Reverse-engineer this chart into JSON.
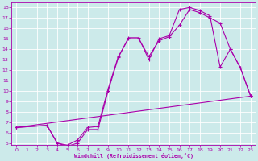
{
  "xlabel": "Windchill (Refroidissement éolien,°C)",
  "bg_color": "#cceaea",
  "line_color": "#aa00aa",
  "grid_color": "#ffffff",
  "xlim": [
    -0.5,
    23.5
  ],
  "ylim": [
    4.8,
    18.5
  ],
  "xticks": [
    0,
    1,
    2,
    3,
    4,
    5,
    6,
    7,
    8,
    9,
    10,
    11,
    12,
    13,
    14,
    15,
    16,
    17,
    18,
    19,
    20,
    21,
    22,
    23
  ],
  "yticks": [
    5,
    6,
    7,
    8,
    9,
    10,
    11,
    12,
    13,
    14,
    15,
    16,
    17,
    18
  ],
  "curve1_x": [
    0,
    23
  ],
  "curve1_y": [
    6.5,
    9.5
  ],
  "curve2_x": [
    0,
    3,
    4,
    5,
    6,
    7,
    8,
    9,
    10,
    11,
    12,
    13,
    14,
    15,
    16,
    17,
    18,
    19,
    20,
    21,
    22,
    23
  ],
  "curve2_y": [
    6.5,
    6.7,
    5.0,
    4.8,
    5.3,
    6.5,
    6.6,
    10.2,
    13.3,
    15.0,
    15.0,
    13.3,
    14.8,
    15.2,
    16.3,
    17.8,
    17.5,
    17.0,
    16.5,
    14.0,
    12.2,
    9.5
  ],
  "curve3_x": [
    0,
    3,
    4,
    5,
    6,
    7,
    8,
    9,
    10,
    11,
    12,
    13,
    14,
    15,
    16,
    17,
    18,
    19,
    20,
    21,
    22,
    23
  ],
  "curve3_y": [
    6.5,
    6.7,
    5.0,
    4.7,
    5.0,
    6.3,
    6.3,
    10.0,
    13.2,
    15.1,
    15.1,
    13.0,
    15.0,
    15.3,
    17.8,
    18.0,
    17.7,
    17.2,
    12.3,
    14.0,
    12.2,
    9.5
  ]
}
